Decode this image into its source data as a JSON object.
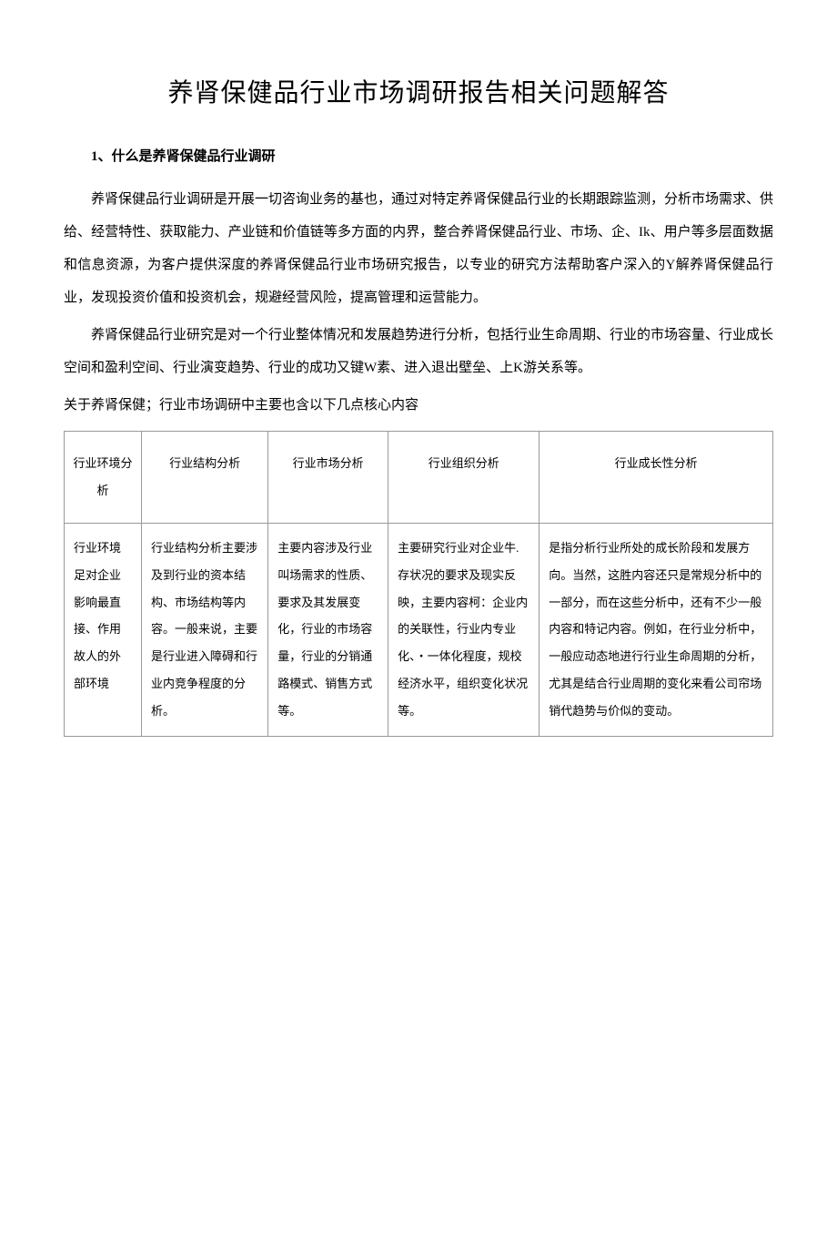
{
  "title": "养肾保健品行业市场调研报告相关问题解答",
  "section1": {
    "heading": "1、什么是养肾保健品行业调研",
    "para1": "养肾保健品行业调研是开展一切咨询业务的基也，通过对特定养肾保健品行业的长期跟踪监测，分析市场需求、供给、经营特性、获取能力、产业链和价值链等多方面的内界，整合养肾保健品行业、市场、企、Ik、用户等多层面数据和信息资源，为客户提供深度的养肾保健品行业市场研究报告，以专业的研究方法帮助客户深入的Y解养肾保健品行业，发现投资价值和投资机会，规避经营风险，提高管理和运营能力。",
    "para2": "养肾保健品行业研究是对一个行业整体情况和发展趋势进行分析，包括行业生命周期、行业的市场容量、行业成长空间和盈利空间、行业演变趋势、行业的成功又键W素、进入退出壁垒、上K游关系等。"
  },
  "subtitle": "关于养肾保健；行业市场调研中主要也含以下几点核心内容",
  "table": {
    "headers": [
      "行业环境分析",
      "行业结构分析",
      "行业市场分析",
      "行业组织分析",
      "行业成长性分析"
    ],
    "cells": [
      "行业环境足对企业影响最直接、作用故人的外部环境",
      "行业结构分析主要涉及到行业的资本结构、市场结构等内容。一般来说，主要是行业进入障碍和行业内竞争程度的分析。",
      "主要内容涉及行业叫场需求的性质、要求及其发展变化，行业的市场容量，行业的分销通路模式、销售方式等。",
      "主要研究行业对企业牛.存状况的要求及现实反映，主要内容柯：企业内的关联性，行业内专业化、・一体化程度，规校经济水平，组织变化状况等。",
      "是指分析行业所处的成长阶段和发展方向。当然，这胜内容还只是常规分析中的一部分，而在这些分析中，还有不少一般内容和特记内容。例如，在行业分析中，一般应动态地进行行业生命周期的分析，尤其是结合行业周期的变化来看公司帘场销代趋势与价似的变动。"
    ]
  }
}
